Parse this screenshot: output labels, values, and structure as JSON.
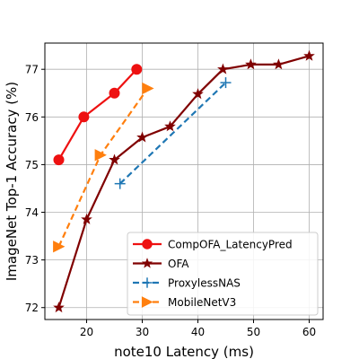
{
  "chart_data": {
    "type": "line",
    "xlabel": "note10 Latency (ms)",
    "ylabel": "ImageNet Top-1 Accuracy (%)",
    "xlim": [
      12.5,
      62.5
    ],
    "ylim": [
      71.75,
      77.55
    ],
    "xticks": [
      20,
      30,
      40,
      50,
      60
    ],
    "yticks": [
      72,
      73,
      74,
      75,
      76,
      77
    ],
    "grid": true,
    "legend_position": "lower-right",
    "series": [
      {
        "name": "CompOFA_LatencyPred",
        "color": "#ee1111",
        "marker": "circle",
        "dash": "solid",
        "x": [
          15,
          19.5,
          25,
          29
        ],
        "y": [
          75.1,
          76.0,
          76.5,
          77.0
        ]
      },
      {
        "name": "OFA",
        "color": "#800000",
        "marker": "star",
        "dash": "solid",
        "x": [
          15,
          20,
          25,
          30,
          35,
          40,
          44.5,
          49.5,
          54.5,
          60
        ],
        "y": [
          72.0,
          73.85,
          75.1,
          75.57,
          75.8,
          76.48,
          77.0,
          77.1,
          77.1,
          77.28
        ]
      },
      {
        "name": "ProxylessNAS",
        "color": "#1f77b4",
        "marker": "plus",
        "dash": "dashed",
        "x": [
          26,
          45
        ],
        "y": [
          74.6,
          76.72
        ]
      },
      {
        "name": "MobileNetV3",
        "color": "#ff7f0e",
        "marker": "triangle-right",
        "dash": "dashed",
        "x": [
          15,
          22.5,
          31
        ],
        "y": [
          73.28,
          75.2,
          76.6
        ]
      }
    ]
  }
}
